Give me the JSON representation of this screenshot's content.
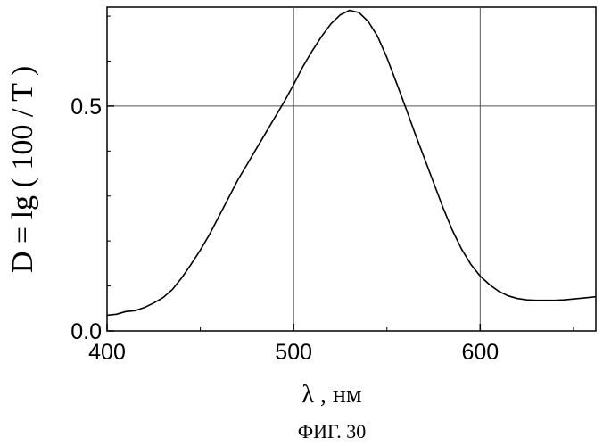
{
  "figure_caption": "ФИГ. 30",
  "chart_data": {
    "type": "line",
    "title": "",
    "xlabel": "λ , нм",
    "ylabel": "D = lg ( 100 / T )",
    "xlim": [
      400,
      662
    ],
    "ylim": [
      0.0,
      0.72
    ],
    "x_ticks": [
      400,
      500,
      600
    ],
    "x_tick_labels": [
      "400",
      "500",
      "600"
    ],
    "y_ticks": [
      0.0,
      0.5
    ],
    "y_tick_labels": [
      "0.0",
      "0.5"
    ],
    "grid": true,
    "grid_x": [
      500,
      600
    ],
    "grid_y": [
      0.5
    ],
    "legend": "none",
    "series": [
      {
        "color": "#000000",
        "x": [
          400,
          405,
          410,
          415,
          420,
          425,
          430,
          435,
          440,
          445,
          450,
          455,
          460,
          465,
          470,
          475,
          480,
          485,
          490,
          495,
          500,
          505,
          510,
          515,
          520,
          525,
          530,
          535,
          540,
          545,
          550,
          555,
          560,
          565,
          570,
          575,
          580,
          585,
          590,
          595,
          600,
          605,
          610,
          615,
          620,
          625,
          630,
          635,
          640,
          645,
          650,
          655,
          662
        ],
        "y": [
          0.035,
          0.037,
          0.043,
          0.045,
          0.052,
          0.062,
          0.074,
          0.092,
          0.118,
          0.148,
          0.18,
          0.215,
          0.255,
          0.295,
          0.335,
          0.37,
          0.405,
          0.44,
          0.475,
          0.51,
          0.548,
          0.588,
          0.623,
          0.655,
          0.683,
          0.703,
          0.713,
          0.708,
          0.688,
          0.655,
          0.608,
          0.553,
          0.497,
          0.44,
          0.385,
          0.33,
          0.275,
          0.225,
          0.182,
          0.148,
          0.122,
          0.103,
          0.088,
          0.078,
          0.072,
          0.069,
          0.068,
          0.068,
          0.068,
          0.069,
          0.071,
          0.073,
          0.076
        ]
      }
    ]
  }
}
